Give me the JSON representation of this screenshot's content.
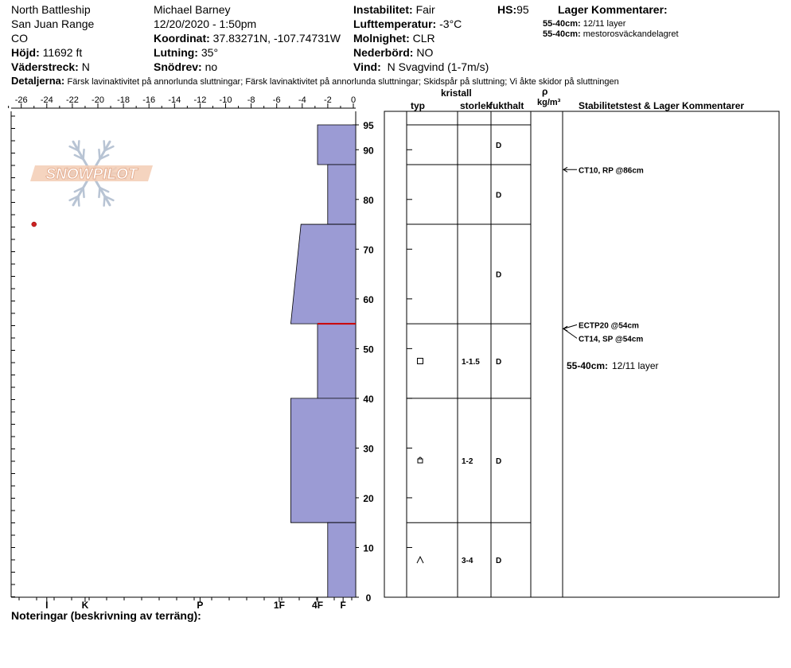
{
  "header": {
    "location": "North Battleship",
    "range": "San Juan Range",
    "state": "CO",
    "elevation_label": "Höjd:",
    "elevation_value": "11692 ft",
    "aspect_label": "Väderstreck:",
    "aspect_value": "N",
    "observer": "Michael Barney",
    "datetime": "12/20/2020 - 1:50pm",
    "coord_label": "Koordinat:",
    "coord_value": "37.83271N, -107.74731W",
    "slope_label": "Lutning:",
    "slope_value": "35°",
    "drift_label": "Snödrev:",
    "drift_value": "no",
    "stability_label": "Instabilitet:",
    "stability_value": "Fair",
    "airtemp_label": "Lufttemperatur:",
    "airtemp_value": "-3°C",
    "sky_label": "Molnighet:",
    "sky_value": "CLR",
    "precip_label": "Nederbörd:",
    "precip_value": "NO",
    "wind_label": "Vind:",
    "wind_value": "N Svagvind (1-7m/s)",
    "hs_label": "HS:",
    "hs_value": "95",
    "layer_comments_title": "Lager Kommentarer:",
    "layer_comments": [
      {
        "range": "55-40cm:",
        "text": "12/11 layer"
      },
      {
        "range": "55-40cm:",
        "text": "mestorosväckandelagret"
      }
    ],
    "details_label": "Detaljerna:",
    "details_text": "Färsk lavinaktivitet på annorlunda sluttningar; Färsk lavinaktivitet på annorlunda sluttningar; Skidspår på sluttning; Vi åkte skidor på sluttningen"
  },
  "table_headers": {
    "crystal": "kristall",
    "type": "typ",
    "size": "storlek",
    "moisture": "fukthalt",
    "rho": "ρ",
    "density_unit": "kg/m³",
    "stability": "Stabilitetstest & Lager Kommentarer"
  },
  "notes_label": "Noteringar (beskrivning av terräng):",
  "logo_text": "SNOWPILOT",
  "colors": {
    "layer_fill": "#9b9bd4",
    "weak_layer": "#cc0000",
    "temp_point": "#cc2222"
  },
  "chart_data": {
    "type": "snow-profile",
    "x_temp_ticks": [
      -26,
      -24,
      -22,
      -20,
      -18,
      -16,
      -14,
      -12,
      -10,
      -8,
      -6,
      -4,
      -2,
      0
    ],
    "x_temp_range": [
      -27,
      0
    ],
    "depth_range": [
      0,
      95
    ],
    "depth_ticks": [
      0,
      10,
      20,
      30,
      40,
      50,
      60,
      70,
      80,
      90,
      95
    ],
    "hardness_labels": [
      {
        "label": "I",
        "temp": -24
      },
      {
        "label": "K",
        "temp": -21
      },
      {
        "label": "P",
        "temp": -12
      },
      {
        "label": "1F",
        "temp": -5.8
      },
      {
        "label": "4F",
        "temp": -2.8
      },
      {
        "label": "F",
        "temp": -0.8
      }
    ],
    "temperature_points": [
      {
        "depth": 75,
        "temp": -25
      }
    ],
    "layers": [
      {
        "top": 95,
        "bottom": 87,
        "hardness_top": "4F",
        "hardness_bottom": "4F",
        "moisture": "D",
        "type": "",
        "size": ""
      },
      {
        "top": 87,
        "bottom": 75,
        "hardness_top": "F+",
        "hardness_bottom": "F+",
        "moisture": "D",
        "type": "",
        "size": ""
      },
      {
        "top": 75,
        "bottom": 55,
        "hardness_top": "4F-",
        "hardness_bottom": "1F-",
        "moisture": "D",
        "type": "",
        "size": ""
      },
      {
        "top": 55,
        "bottom": 40,
        "hardness_top": "4F",
        "hardness_bottom": "4F",
        "moisture": "D",
        "type": "facets",
        "size": "1-1.5"
      },
      {
        "top": 40,
        "bottom": 15,
        "hardness_top": "1F-",
        "hardness_bottom": "1F-",
        "moisture": "D",
        "type": "rounding facets",
        "size": "1-2"
      },
      {
        "top": 15,
        "bottom": 0,
        "hardness_top": "F+",
        "hardness_bottom": "F+",
        "moisture": "D",
        "type": "depth hoar",
        "size": "3-4"
      }
    ],
    "weak_layer_depth": 55,
    "stability_tests": [
      {
        "label": "CT10, RP @86cm",
        "depth": 86
      },
      {
        "label": "ECTP20 @54cm",
        "depth": 54
      },
      {
        "label": "CT14, SP @54cm",
        "depth": 54
      }
    ],
    "layer_comment": {
      "range": "55-40cm:",
      "text": "12/11 layer"
    }
  }
}
